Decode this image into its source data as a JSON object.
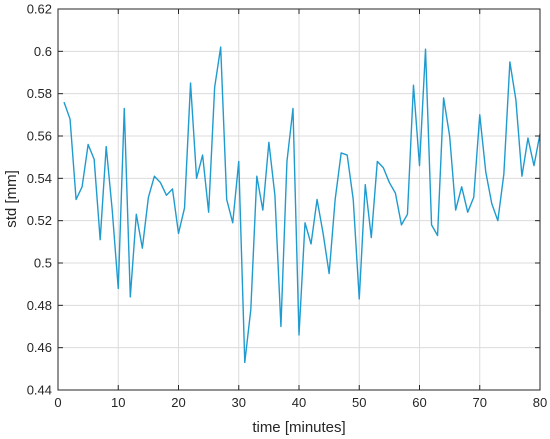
{
  "chart_data": {
    "type": "line",
    "xlabel": "time [minutes]",
    "ylabel": "std [mm]",
    "xlim": [
      0,
      80
    ],
    "ylim": [
      0.44,
      0.62
    ],
    "xticks": [
      0,
      10,
      20,
      30,
      40,
      50,
      60,
      70,
      80
    ],
    "yticks": [
      0.44,
      0.46,
      0.48,
      0.5,
      0.52,
      0.54,
      0.56,
      0.58,
      0.6,
      0.62
    ],
    "grid": true,
    "series": [
      {
        "color": "#1f9bd0",
        "x": [
          1,
          2,
          3,
          4,
          5,
          6,
          7,
          8,
          9,
          10,
          11,
          12,
          13,
          14,
          15,
          16,
          17,
          18,
          19,
          20,
          21,
          22,
          23,
          24,
          25,
          26,
          27,
          28,
          29,
          30,
          31,
          32,
          33,
          34,
          35,
          36,
          37,
          38,
          39,
          40,
          41,
          42,
          43,
          44,
          45,
          46,
          47,
          48,
          49,
          50,
          51,
          52,
          53,
          54,
          55,
          56,
          57,
          58,
          59,
          60,
          61,
          62,
          63,
          64,
          65,
          66,
          67,
          68,
          69,
          70,
          71,
          72,
          73,
          74,
          75,
          76,
          77,
          78,
          79,
          80
        ],
        "values": [
          0.576,
          0.568,
          0.53,
          0.536,
          0.556,
          0.549,
          0.511,
          0.555,
          0.525,
          0.488,
          0.573,
          0.484,
          0.523,
          0.507,
          0.531,
          0.541,
          0.538,
          0.532,
          0.535,
          0.514,
          0.526,
          0.585,
          0.54,
          0.551,
          0.524,
          0.583,
          0.602,
          0.53,
          0.519,
          0.548,
          0.453,
          0.478,
          0.541,
          0.525,
          0.557,
          0.532,
          0.47,
          0.548,
          0.573,
          0.466,
          0.519,
          0.509,
          0.53,
          0.514,
          0.495,
          0.53,
          0.552,
          0.551,
          0.53,
          0.483,
          0.537,
          0.512,
          0.548,
          0.545,
          0.538,
          0.533,
          0.518,
          0.523,
          0.584,
          0.546,
          0.601,
          0.518,
          0.513,
          0.578,
          0.56,
          0.525,
          0.536,
          0.524,
          0.531,
          0.57,
          0.543,
          0.528,
          0.52,
          0.542,
          0.595,
          0.577,
          0.541,
          0.559,
          0.546,
          0.561
        ]
      }
    ]
  }
}
